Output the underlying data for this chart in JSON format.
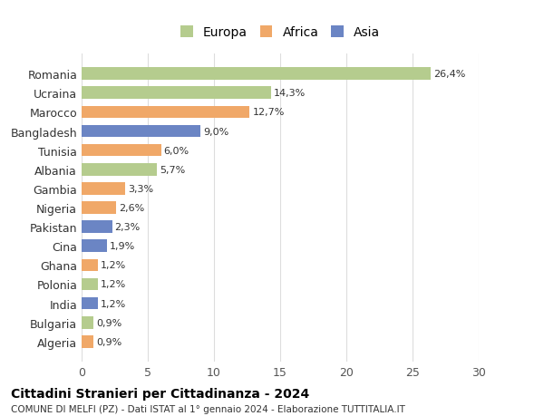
{
  "categories": [
    "Algeria",
    "Bulgaria",
    "India",
    "Polonia",
    "Ghana",
    "Cina",
    "Pakistan",
    "Nigeria",
    "Gambia",
    "Albania",
    "Tunisia",
    "Bangladesh",
    "Marocco",
    "Ucraina",
    "Romania"
  ],
  "values": [
    0.9,
    0.9,
    1.2,
    1.2,
    1.2,
    1.9,
    2.3,
    2.6,
    3.3,
    5.7,
    6.0,
    9.0,
    12.7,
    14.3,
    26.4
  ],
  "labels": [
    "0,9%",
    "0,9%",
    "1,2%",
    "1,2%",
    "1,2%",
    "1,9%",
    "2,3%",
    "2,6%",
    "3,3%",
    "5,7%",
    "6,0%",
    "9,0%",
    "12,7%",
    "14,3%",
    "26,4%"
  ],
  "bar_colors": [
    "#f0a868",
    "#b5cc8e",
    "#6b85c4",
    "#b5cc8e",
    "#f0a868",
    "#6b85c4",
    "#6b85c4",
    "#f0a868",
    "#f0a868",
    "#b5cc8e",
    "#f0a868",
    "#6b85c4",
    "#f0a868",
    "#b5cc8e",
    "#b5cc8e"
  ],
  "xlim": [
    0,
    30
  ],
  "xticks": [
    0,
    5,
    10,
    15,
    20,
    25,
    30
  ],
  "title": "Cittadini Stranieri per Cittadinanza - 2024",
  "subtitle": "COMUNE DI MELFI (PZ) - Dati ISTAT al 1° gennaio 2024 - Elaborazione TUTTITALIA.IT",
  "legend_labels": [
    "Europa",
    "Africa",
    "Asia"
  ],
  "legend_colors": [
    "#b5cc8e",
    "#f0a868",
    "#6b85c4"
  ],
  "background_color": "#ffffff",
  "grid_color": "#dddddd"
}
